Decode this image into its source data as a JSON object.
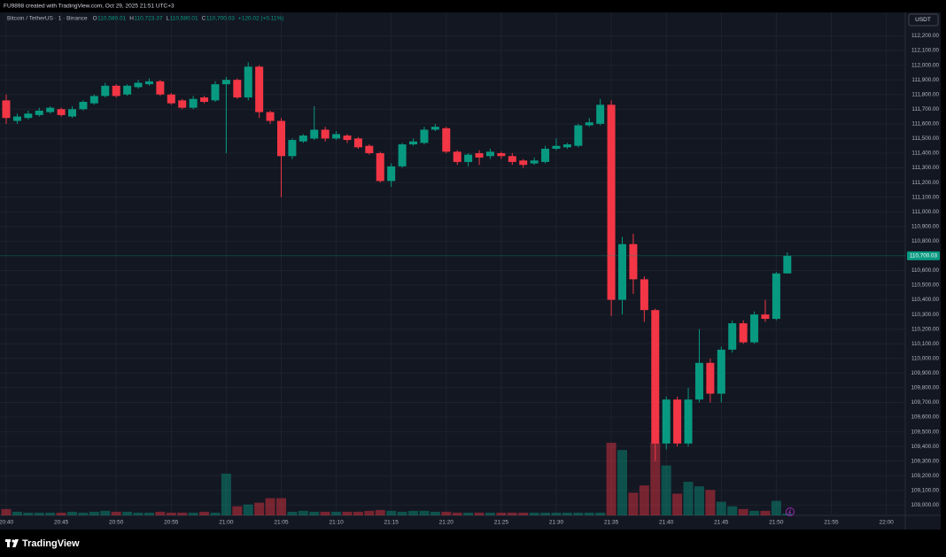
{
  "header": {
    "credit": "FU9898 created with TradingView.com, Oct 29, 2025 21:51 UTC+3",
    "symbol": "Bitcoin / TetherUS · 1 · Binance",
    "ohlc": [
      {
        "key": "O",
        "value": "110,580.01"
      },
      {
        "key": "H",
        "value": "110,723.37"
      },
      {
        "key": "L",
        "value": "110,580.01"
      },
      {
        "key": "C",
        "value": "110,700.03"
      }
    ],
    "change": "+120.02 (+0.11%)",
    "currency": "USDT"
  },
  "footer": {
    "brand": "TradingView"
  },
  "chart_data": {
    "type": "candlestick",
    "up_color": "#089981",
    "down_color": "#f23645",
    "grid": true,
    "x": [
      "20:40",
      "20:41",
      "20:42",
      "20:43",
      "20:44",
      "20:45",
      "20:46",
      "20:47",
      "20:48",
      "20:49",
      "20:50",
      "20:51",
      "20:52",
      "20:53",
      "20:54",
      "20:55",
      "20:56",
      "20:57",
      "20:58",
      "20:59",
      "21:00",
      "21:01",
      "21:02",
      "21:03",
      "21:04",
      "21:05",
      "21:06",
      "21:07",
      "21:08",
      "21:09",
      "21:10",
      "21:11",
      "21:12",
      "21:13",
      "21:14",
      "21:15",
      "21:16",
      "21:17",
      "21:18",
      "21:19",
      "21:20",
      "21:21",
      "21:22",
      "21:23",
      "21:24",
      "21:25",
      "21:26",
      "21:27",
      "21:28",
      "21:29",
      "21:30",
      "21:31",
      "21:32",
      "21:33",
      "21:34",
      "21:35",
      "21:36",
      "21:37",
      "21:38",
      "21:39",
      "21:40",
      "21:41",
      "21:42",
      "21:43",
      "21:44",
      "21:45",
      "21:46",
      "21:47",
      "21:48",
      "21:49",
      "21:50",
      "21:51"
    ],
    "open": [
      111760,
      111620,
      111640,
      111660,
      111680,
      111700,
      111650,
      111700,
      111740,
      111790,
      111860,
      111800,
      111850,
      111870,
      111890,
      111800,
      111760,
      111710,
      111780,
      111760,
      111870,
      111900,
      111780,
      111990,
      111680,
      111620,
      111380,
      111480,
      111500,
      111560,
      111500,
      111520,
      111500,
      111450,
      111400,
      111210,
      111310,
      111460,
      111470,
      111560,
      111570,
      111410,
      111340,
      111400,
      111380,
      111400,
      111380,
      111350,
      111330,
      111340,
      111430,
      111440,
      111450,
      111590,
      111600,
      111730,
      110400,
      110780,
      110540,
      110330,
      109420,
      109720,
      109420,
      109720,
      109970,
      109760,
      110060,
      110240,
      110110,
      110300,
      110270,
      110580.01
    ],
    "high": [
      111800,
      111670,
      111690,
      111710,
      111720,
      111710,
      111720,
      111760,
      111800,
      111880,
      111870,
      111870,
      111900,
      111910,
      111900,
      111810,
      111770,
      111790,
      111790,
      111890,
      111920,
      111910,
      112020,
      112000,
      111690,
      111640,
      111500,
      111530,
      111720,
      111580,
      111550,
      111530,
      111510,
      111460,
      111410,
      111330,
      111470,
      111500,
      111580,
      111600,
      111580,
      111420,
      111400,
      111420,
      111430,
      111410,
      111400,
      111360,
      111370,
      111450,
      111500,
      111470,
      111600,
      111640,
      111770,
      111760,
      110830,
      110850,
      110560,
      110340,
      109740,
      109740,
      109800,
      110200,
      110000,
      110080,
      110260,
      110260,
      110320,
      110400,
      110590,
      110723.37
    ],
    "low": [
      111600,
      111600,
      111630,
      111650,
      111670,
      111650,
      111640,
      111690,
      111730,
      111780,
      111780,
      111790,
      111840,
      111860,
      111790,
      111730,
      111700,
      111700,
      111740,
      111750,
      111400,
      111770,
      111760,
      111640,
      111600,
      111100,
      111360,
      111470,
      111490,
      111480,
      111490,
      111470,
      111430,
      111390,
      111200,
      111170,
      111300,
      111450,
      111460,
      111550,
      111400,
      111320,
      111310,
      111320,
      111360,
      111360,
      111320,
      111300,
      111320,
      111330,
      111420,
      111430,
      111440,
      111580,
      111590,
      110290,
      110300,
      110440,
      110250,
      109300,
      109380,
      109400,
      109400,
      109700,
      109700,
      109700,
      110040,
      110100,
      110100,
      110250,
      110260,
      110580.01
    ],
    "close": [
      111640,
      111650,
      111670,
      111690,
      111710,
      111660,
      111700,
      111750,
      111790,
      111860,
      111790,
      111860,
      111880,
      111890,
      111800,
      111740,
      111710,
      111770,
      111750,
      111870,
      111900,
      111780,
      111990,
      111680,
      111620,
      111380,
      111490,
      111520,
      111560,
      111500,
      111530,
      111490,
      111440,
      111400,
      111210,
      111310,
      111460,
      111480,
      111560,
      111580,
      111410,
      111340,
      111390,
      111370,
      111410,
      111380,
      111340,
      111320,
      111350,
      111430,
      111450,
      111460,
      111590,
      111610,
      111730,
      110400,
      110780,
      110540,
      110330,
      109420,
      109720,
      109420,
      109720,
      109970,
      109760,
      110060,
      110240,
      110110,
      110300,
      110270,
      110580,
      110700.03
    ],
    "volume": [
      7,
      4,
      3,
      3,
      3,
      3,
      4,
      3,
      4,
      5,
      4,
      4,
      3,
      3,
      4,
      3,
      3,
      3,
      4,
      3,
      46,
      10,
      12,
      14,
      19,
      19,
      4,
      5,
      4,
      4,
      4,
      4,
      4,
      5,
      6,
      5,
      4,
      5,
      5,
      4,
      4,
      3,
      3,
      3,
      3,
      3,
      3,
      3,
      3,
      3,
      3,
      3,
      3,
      3,
      3,
      80,
      72,
      25,
      33,
      80,
      55,
      24,
      37,
      32,
      28,
      15,
      10,
      7,
      5,
      5,
      16,
      2
    ],
    "last_price": {
      "value": 110700.03,
      "label": "110,700.03"
    },
    "ylim": [
      108930,
      112360
    ],
    "yticks": [
      {
        "value": 109000,
        "label": "109,000.00"
      },
      {
        "value": 109100,
        "label": "109,100.00"
      },
      {
        "value": 109200,
        "label": "109,200.00"
      },
      {
        "value": 109300,
        "label": "109,300.00"
      },
      {
        "value": 109400,
        "label": "109,400.00"
      },
      {
        "value": 109500,
        "label": "109,500.00"
      },
      {
        "value": 109600,
        "label": "109,600.00"
      },
      {
        "value": 109700,
        "label": "109,700.00"
      },
      {
        "value": 109800,
        "label": "109,800.00"
      },
      {
        "value": 109900,
        "label": "109,900.00"
      },
      {
        "value": 110000,
        "label": "110,000.00"
      },
      {
        "value": 110100,
        "label": "110,100.00"
      },
      {
        "value": 110200,
        "label": "110,200.00"
      },
      {
        "value": 110300,
        "label": "110,300.00"
      },
      {
        "value": 110400,
        "label": "110,400.00"
      },
      {
        "value": 110500,
        "label": "110,500.00"
      },
      {
        "value": 110600,
        "label": "110,600.00"
      },
      {
        "value": 110800,
        "label": "110,800.00"
      },
      {
        "value": 110900,
        "label": "110,900.00"
      },
      {
        "value": 111000,
        "label": "111,000.00"
      },
      {
        "value": 111100,
        "label": "111,100.00"
      },
      {
        "value": 111200,
        "label": "111,200.00"
      },
      {
        "value": 111300,
        "label": "111,300.00"
      },
      {
        "value": 111400,
        "label": "111,400.00"
      },
      {
        "value": 111500,
        "label": "111,500.00"
      },
      {
        "value": 111600,
        "label": "111,600.00"
      },
      {
        "value": 111700,
        "label": "111,700.00"
      },
      {
        "value": 111800,
        "label": "111,800.00"
      },
      {
        "value": 111900,
        "label": "111,900.00"
      },
      {
        "value": 112000,
        "label": "112,000.00"
      },
      {
        "value": 112100,
        "label": "112,100.00"
      },
      {
        "value": 112200,
        "label": "112,200.00"
      }
    ],
    "xticks": [
      "20:40",
      "20:45",
      "20:50",
      "20:55",
      "21:00",
      "21:05",
      "21:10",
      "21:15",
      "21:20",
      "21:25",
      "21:30",
      "21:35",
      "21:40",
      "21:45",
      "21:50",
      "21:55",
      "22:00"
    ]
  }
}
